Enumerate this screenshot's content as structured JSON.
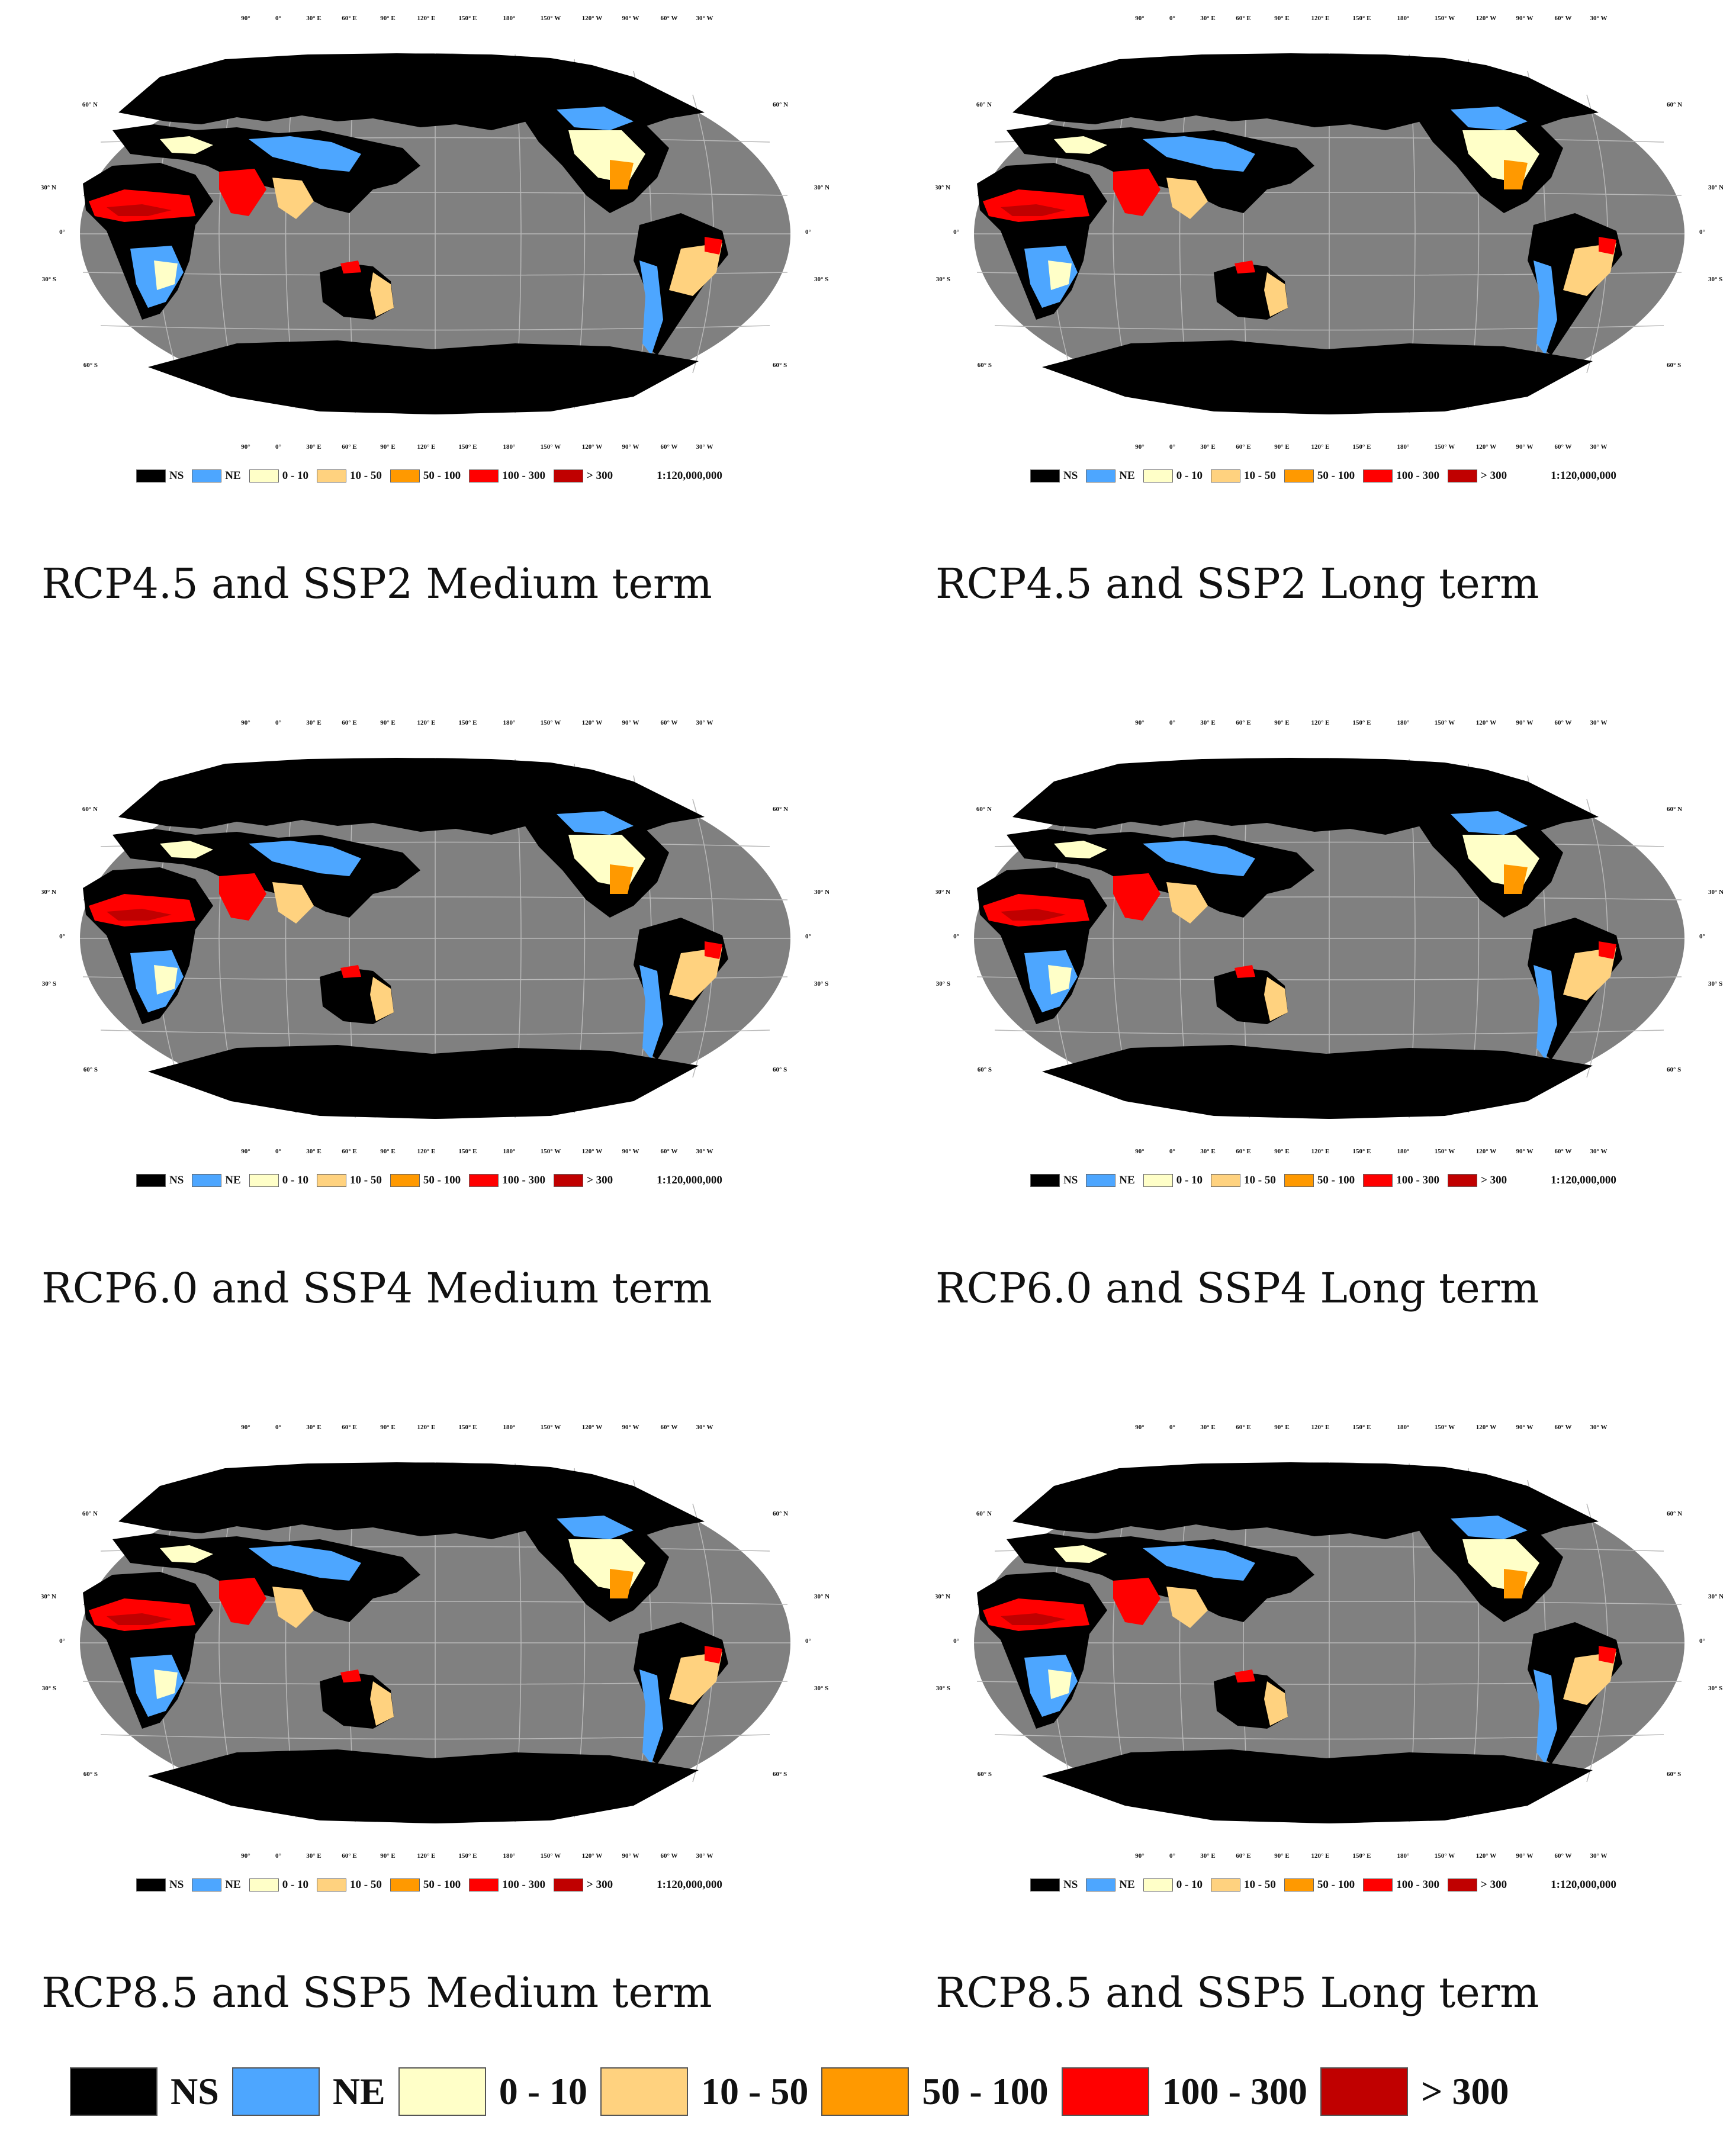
{
  "legend": {
    "classes": [
      {
        "label": "NS",
        "color": "#000000"
      },
      {
        "label": "NE",
        "color": "#4da6ff"
      },
      {
        "label": "0 - 10",
        "color": "#ffffc8"
      },
      {
        "label": "10 - 50",
        "color": "#ffd27f"
      },
      {
        "label": "50 - 100",
        "color": "#ff9900"
      },
      {
        "label": "100 - 300",
        "color": "#ff0000"
      },
      {
        "label": "> 300",
        "color": "#c00000"
      }
    ],
    "scale": "1:120,000,000"
  },
  "map": {
    "ocean_color": "#808080",
    "land_color": "#000000",
    "graticule_color": "#b8b8b8",
    "lon_labels": [
      "90°",
      "0°",
      "30° E",
      "60° E",
      "90° E",
      "120° E",
      "150° E",
      "180°",
      "150° W",
      "120° W",
      "90° W",
      "60° W",
      "30° W"
    ],
    "lat_labels_left": [
      "60° N",
      "30° N",
      "0°",
      "30° S",
      "60° S"
    ],
    "lat_labels_right": [
      "60° N",
      "30° N",
      "0°",
      "30° S",
      "60° S"
    ]
  },
  "panels": [
    {
      "caption": "RCP4.5 and SSP2 Medium term"
    },
    {
      "caption": "RCP4.5 and SSP2 Long term"
    },
    {
      "caption": "RCP6.0 and SSP4 Medium term"
    },
    {
      "caption": "RCP6.0 and SSP4 Long term"
    },
    {
      "caption": "RCP8.5 and SSP5 Medium term"
    },
    {
      "caption": "RCP8.5 and SSP5 Long term"
    }
  ]
}
